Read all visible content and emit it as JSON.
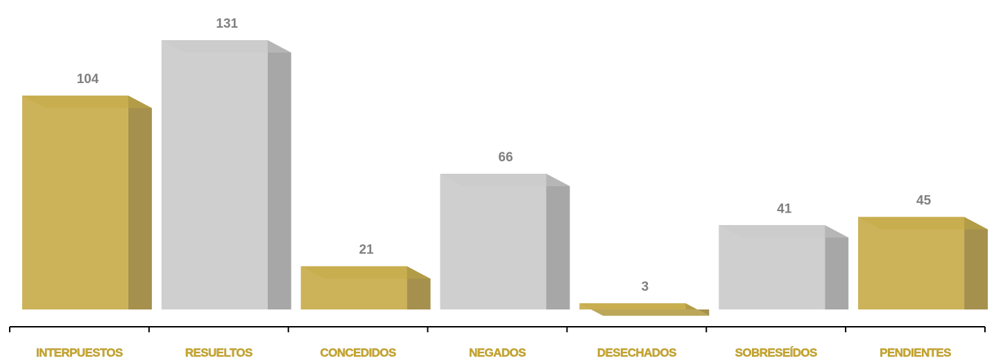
{
  "chart_data": {
    "type": "bar",
    "title": "",
    "xlabel": "",
    "ylabel": "",
    "ylim": [
      0,
      131
    ],
    "grid": false,
    "legend": "none",
    "categories": [
      "INTERPUESTOS",
      "RESUELTOS",
      "CONCEDIDOS",
      "NEGADOS",
      "DESECHADOS",
      "SOBRESEÍDOS",
      "PENDIENTES"
    ],
    "values": [
      104,
      131,
      21,
      66,
      3,
      41,
      45
    ],
    "data_labels": [
      "104",
      "131",
      "21",
      "66",
      "3",
      "41",
      "45"
    ],
    "colors": [
      "#c9ae4f",
      "#cccccc",
      "#c9ae4f",
      "#cccccc",
      "#c9ae4f",
      "#cccccc",
      "#c9ae4f"
    ],
    "category_label_color": "#c9a830",
    "value_label_color": "#7f7f7f",
    "axis_color": "#000000"
  }
}
